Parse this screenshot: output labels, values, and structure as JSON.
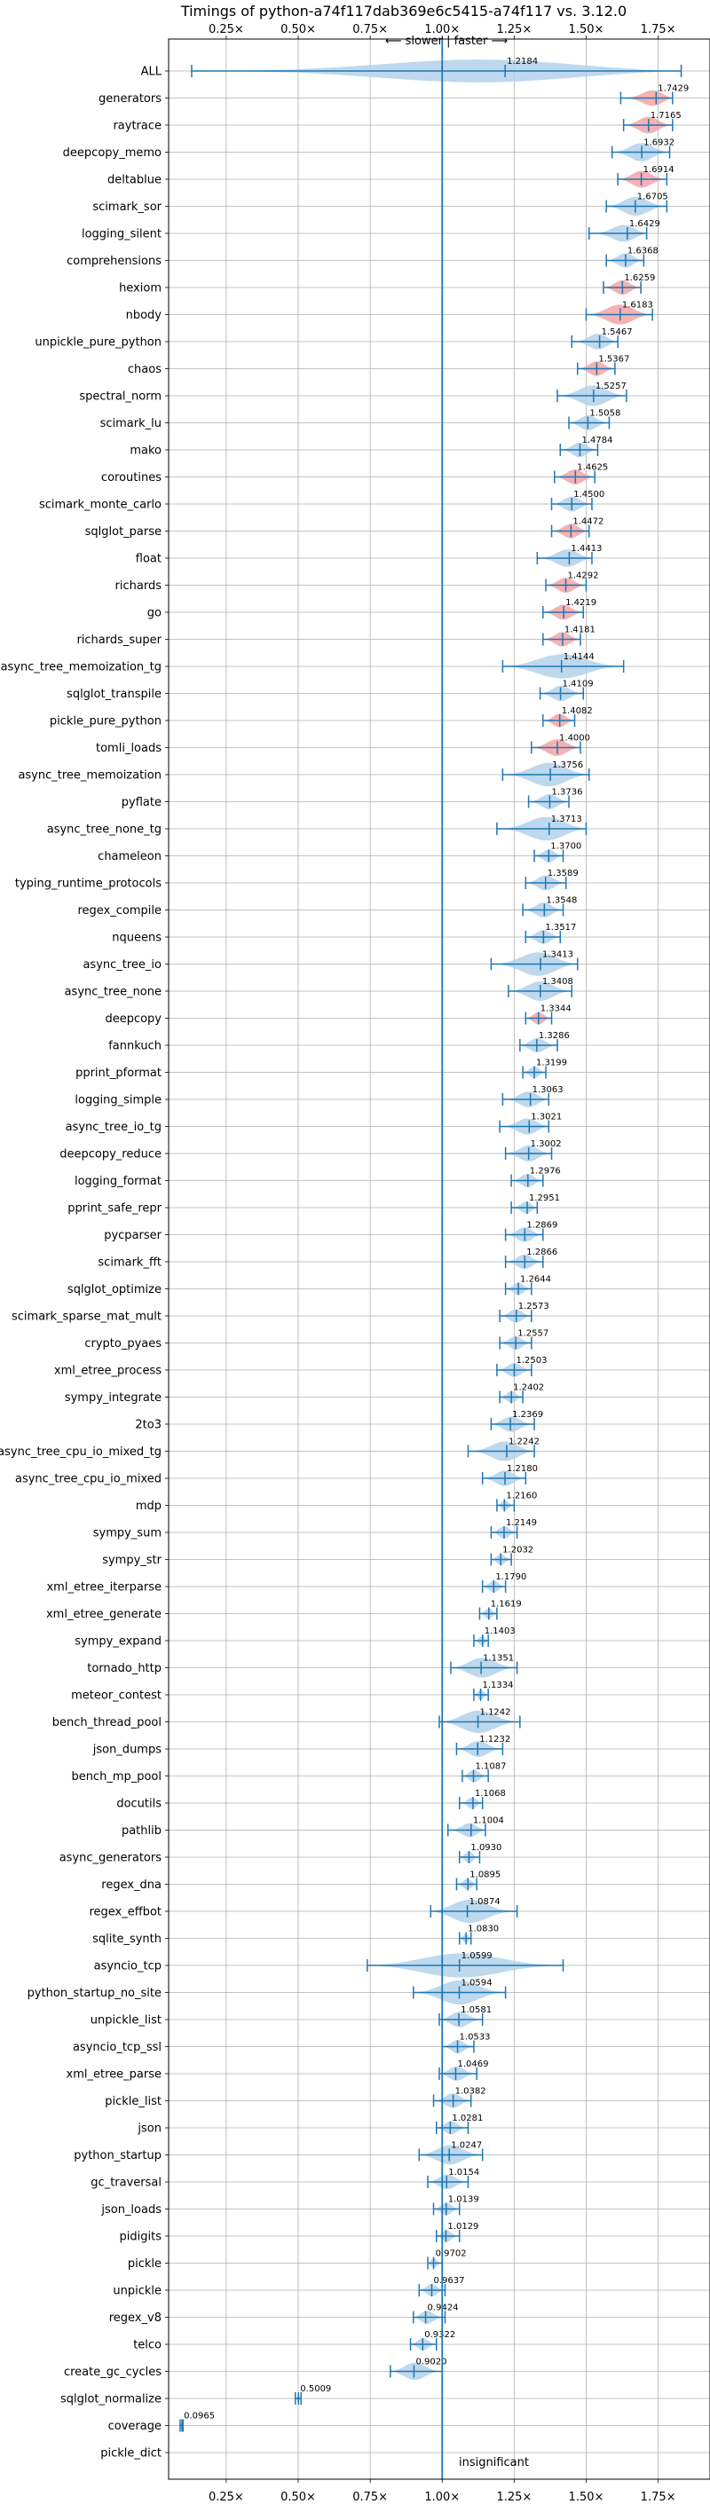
{
  "chart_data": {
    "type": "violin",
    "title": "Timings of python-a74f117dab369e6c5415-a74f117 vs. 3.12.0",
    "direction_label": "⟵ slower | faster ⟶",
    "xlim": [
      0.05,
      1.93
    ],
    "xticks": [
      0.25,
      0.5,
      0.75,
      1.0,
      1.25,
      1.5,
      1.75
    ],
    "xtick_labels": [
      "0.25×",
      "0.50×",
      "0.75×",
      "1.00×",
      "1.25×",
      "1.50×",
      "1.75×"
    ],
    "reference_line": 1.0,
    "grid": true,
    "colors": {
      "normal": "#1f77b4",
      "violin": "#b3d1ea",
      "highlight": "#f4a3a6"
    },
    "annotation": "insignificant",
    "categories": [
      "ALL",
      "generators",
      "raytrace",
      "deepcopy_memo",
      "deltablue",
      "scimark_sor",
      "logging_silent",
      "comprehensions",
      "hexiom",
      "nbody",
      "unpickle_pure_python",
      "chaos",
      "spectral_norm",
      "scimark_lu",
      "mako",
      "coroutines",
      "scimark_monte_carlo",
      "sqlglot_parse",
      "float",
      "richards",
      "go",
      "richards_super",
      "async_tree_memoization_tg",
      "sqlglot_transpile",
      "pickle_pure_python",
      "tomli_loads",
      "async_tree_memoization",
      "pyflate",
      "async_tree_none_tg",
      "chameleon",
      "typing_runtime_protocols",
      "regex_compile",
      "nqueens",
      "async_tree_io",
      "async_tree_none",
      "deepcopy",
      "fannkuch",
      "pprint_pformat",
      "logging_simple",
      "async_tree_io_tg",
      "deepcopy_reduce",
      "logging_format",
      "pprint_safe_repr",
      "pycparser",
      "scimark_fft",
      "sqlglot_optimize",
      "scimark_sparse_mat_mult",
      "crypto_pyaes",
      "xml_etree_process",
      "sympy_integrate",
      "2to3",
      "async_tree_cpu_io_mixed_tg",
      "async_tree_cpu_io_mixed",
      "mdp",
      "sympy_sum",
      "sympy_str",
      "xml_etree_iterparse",
      "xml_etree_generate",
      "sympy_expand",
      "tornado_http",
      "meteor_contest",
      "bench_thread_pool",
      "json_dumps",
      "bench_mp_pool",
      "docutils",
      "pathlib",
      "async_generators",
      "regex_dna",
      "regex_effbot",
      "sqlite_synth",
      "asyncio_tcp",
      "python_startup_no_site",
      "unpickle_list",
      "asyncio_tcp_ssl",
      "xml_etree_parse",
      "pickle_list",
      "json",
      "python_startup",
      "gc_traversal",
      "json_loads",
      "pidigits",
      "pickle",
      "unpickle",
      "regex_v8",
      "telco",
      "create_gc_cycles",
      "sqlglot_normalize",
      "coverage",
      "pickle_dict"
    ],
    "values": [
      1.2184,
      1.7429,
      1.7165,
      1.6932,
      1.6914,
      1.6705,
      1.6429,
      1.6368,
      1.6259,
      1.6183,
      1.5467,
      1.5367,
      1.5257,
      1.5058,
      1.4784,
      1.4625,
      1.45,
      1.4472,
      1.4413,
      1.4292,
      1.4219,
      1.4181,
      1.4144,
      1.4109,
      1.4082,
      1.4,
      1.3756,
      1.3736,
      1.3713,
      1.37,
      1.3589,
      1.3548,
      1.3517,
      1.3413,
      1.3408,
      1.3344,
      1.3286,
      1.3199,
      1.3063,
      1.3021,
      1.3002,
      1.2976,
      1.2951,
      1.2869,
      1.2866,
      1.2644,
      1.2573,
      1.2557,
      1.2503,
      1.2402,
      1.2369,
      1.2242,
      1.218,
      1.216,
      1.2149,
      1.2032,
      1.179,
      1.1619,
      1.1403,
      1.1351,
      1.1334,
      1.1242,
      1.1232,
      1.1087,
      1.1068,
      1.1004,
      1.093,
      1.0895,
      1.0874,
      1.083,
      1.0599,
      1.0594,
      1.0581,
      1.0533,
      1.0469,
      1.0382,
      1.0281,
      1.0247,
      1.0154,
      1.0139,
      1.0129,
      0.9702,
      0.9637,
      0.9424,
      0.9322,
      0.902,
      0.5009,
      0.0965,
      null
    ],
    "value_labels": [
      "1.2184",
      "1.7429",
      "1.7165",
      "1.6932",
      "1.6914",
      "1.6705",
      "1.6429",
      "1.6368",
      "1.6259",
      "1.6183",
      "1.5467",
      "1.5367",
      "1.5257",
      "1.5058",
      "1.4784",
      "1.4625",
      "1.4500",
      "1.4472",
      "1.4413",
      "1.4292",
      "1.4219",
      "1.4181",
      "1.4144",
      "1.4109",
      "1.4082",
      "1.4000",
      "1.3756",
      "1.3736",
      "1.3713",
      "1.3700",
      "1.3589",
      "1.3548",
      "1.3517",
      "1.3413",
      "1.3408",
      "1.3344",
      "1.3286",
      "1.3199",
      "1.3063",
      "1.3021",
      "1.3002",
      "1.2976",
      "1.2951",
      "1.2869",
      "1.2866",
      "1.2644",
      "1.2573",
      "1.2557",
      "1.2503",
      "1.2402",
      "1.2369",
      "1.2242",
      "1.2180",
      "1.2160",
      "1.2149",
      "1.2032",
      "1.1790",
      "1.1619",
      "1.1403",
      "1.1351",
      "1.1334",
      "1.1242",
      "1.1232",
      "1.1087",
      "1.1068",
      "1.1004",
      "1.0930",
      "1.0895",
      "1.0874",
      "1.0830",
      "1.0599",
      "1.0594",
      "1.0581",
      "1.0533",
      "1.0469",
      "1.0382",
      "1.0281",
      "1.0247",
      "1.0154",
      "1.0139",
      "1.0129",
      "0.9702",
      "0.9637",
      "0.9424",
      "0.9322",
      "0.9020",
      "0.5009",
      "0.0965",
      ""
    ],
    "ranges": [
      [
        0.13,
        1.83
      ],
      [
        1.62,
        1.8
      ],
      [
        1.63,
        1.8
      ],
      [
        1.59,
        1.79
      ],
      [
        1.61,
        1.78
      ],
      [
        1.57,
        1.78
      ],
      [
        1.51,
        1.71
      ],
      [
        1.57,
        1.7
      ],
      [
        1.56,
        1.69
      ],
      [
        1.5,
        1.73
      ],
      [
        1.45,
        1.61
      ],
      [
        1.47,
        1.6
      ],
      [
        1.4,
        1.64
      ],
      [
        1.44,
        1.58
      ],
      [
        1.41,
        1.54
      ],
      [
        1.39,
        1.53
      ],
      [
        1.38,
        1.52
      ],
      [
        1.38,
        1.51
      ],
      [
        1.33,
        1.52
      ],
      [
        1.36,
        1.5
      ],
      [
        1.35,
        1.49
      ],
      [
        1.35,
        1.48
      ],
      [
        1.21,
        1.63
      ],
      [
        1.34,
        1.49
      ],
      [
        1.35,
        1.46
      ],
      [
        1.31,
        1.48
      ],
      [
        1.21,
        1.51
      ],
      [
        1.3,
        1.44
      ],
      [
        1.19,
        1.5
      ],
      [
        1.32,
        1.42
      ],
      [
        1.29,
        1.43
      ],
      [
        1.28,
        1.42
      ],
      [
        1.29,
        1.41
      ],
      [
        1.17,
        1.47
      ],
      [
        1.23,
        1.45
      ],
      [
        1.29,
        1.38
      ],
      [
        1.27,
        1.4
      ],
      [
        1.28,
        1.36
      ],
      [
        1.21,
        1.37
      ],
      [
        1.2,
        1.37
      ],
      [
        1.22,
        1.38
      ],
      [
        1.24,
        1.35
      ],
      [
        1.24,
        1.33
      ],
      [
        1.22,
        1.35
      ],
      [
        1.22,
        1.35
      ],
      [
        1.22,
        1.31
      ],
      [
        1.2,
        1.31
      ],
      [
        1.2,
        1.31
      ],
      [
        1.19,
        1.31
      ],
      [
        1.2,
        1.28
      ],
      [
        1.17,
        1.32
      ],
      [
        1.09,
        1.32
      ],
      [
        1.14,
        1.29
      ],
      [
        1.19,
        1.25
      ],
      [
        1.17,
        1.26
      ],
      [
        1.17,
        1.24
      ],
      [
        1.14,
        1.22
      ],
      [
        1.13,
        1.19
      ],
      [
        1.11,
        1.16
      ],
      [
        1.03,
        1.26
      ],
      [
        1.11,
        1.16
      ],
      [
        0.99,
        1.27
      ],
      [
        1.05,
        1.21
      ],
      [
        1.07,
        1.16
      ],
      [
        1.06,
        1.14
      ],
      [
        1.02,
        1.15
      ],
      [
        1.06,
        1.13
      ],
      [
        1.05,
        1.12
      ],
      [
        0.96,
        1.26
      ],
      [
        1.06,
        1.1
      ],
      [
        0.74,
        1.42
      ],
      [
        0.9,
        1.22
      ],
      [
        0.99,
        1.14
      ],
      [
        1.0,
        1.11
      ],
      [
        0.99,
        1.12
      ],
      [
        0.97,
        1.1
      ],
      [
        0.98,
        1.09
      ],
      [
        0.92,
        1.14
      ],
      [
        0.95,
        1.09
      ],
      [
        0.97,
        1.06
      ],
      [
        0.98,
        1.06
      ],
      [
        0.95,
        1.0
      ],
      [
        0.92,
        1.01
      ],
      [
        0.9,
        1.01
      ],
      [
        0.89,
        0.98
      ],
      [
        0.82,
        1.0
      ],
      [
        0.49,
        0.51
      ],
      [
        0.09,
        0.1
      ],
      null
    ],
    "highlighted": [
      "generators",
      "raytrace",
      "deltablue",
      "hexiom",
      "nbody",
      "chaos",
      "coroutines",
      "sqlglot_parse",
      "richards",
      "go",
      "richards_super",
      "pickle_pure_python",
      "tomli_loads",
      "deepcopy"
    ]
  }
}
